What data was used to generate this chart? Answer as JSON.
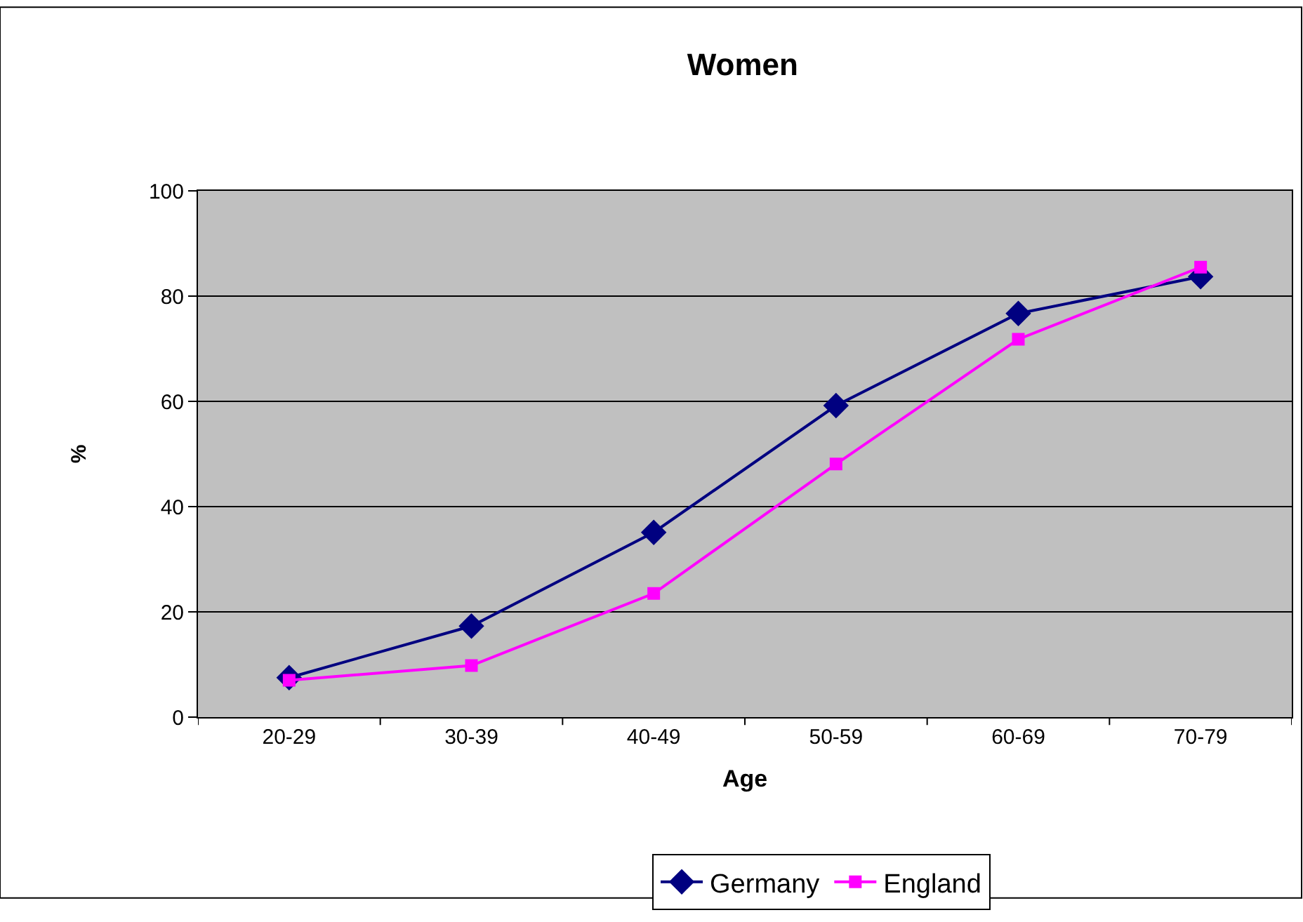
{
  "chart_data": {
    "type": "line",
    "title": "Women",
    "xlabel": "Age",
    "ylabel": "%",
    "categories": [
      "20-29",
      "30-39",
      "40-49",
      "50-59",
      "60-69",
      "70-79"
    ],
    "series": [
      {
        "name": "Germany",
        "color": "#000080",
        "values": [
          7.5,
          17.3,
          35.1,
          59.2,
          76.7,
          83.7
        ],
        "marker": "diamond"
      },
      {
        "name": "England",
        "color": "#ff00ff",
        "values": [
          7.0,
          9.8,
          23.5,
          48.1,
          71.8,
          85.5
        ],
        "marker": "square"
      }
    ],
    "ylim": [
      0,
      100
    ],
    "yticks": [
      0,
      20,
      40,
      60,
      80,
      100
    ],
    "grid": "y",
    "legend": "bottom",
    "line_style": "solid"
  }
}
